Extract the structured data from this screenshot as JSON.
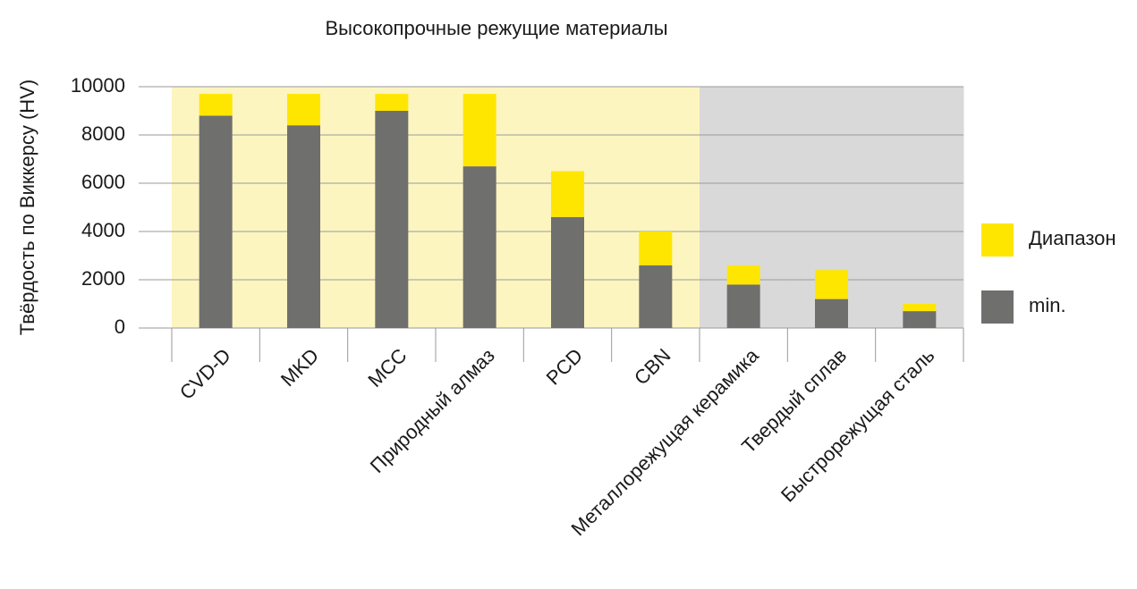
{
  "chart_data": {
    "type": "stacked_bar",
    "title": "Высокопрочные режущие материалы",
    "y_label": "Твёрдость по Виккерсу  (HV)",
    "categories": [
      "CVD-D",
      "MKD",
      "MCC",
      "Природный алмаз",
      "PCD",
      "CBN",
      "Металлорежущая керамика",
      "Твердый сплав",
      "Быстрорежущая сталь"
    ],
    "series": [
      {
        "name": "min.",
        "color": "#6f6f6e",
        "values": [
          8800,
          8400,
          9000,
          6700,
          4600,
          2600,
          1800,
          1200,
          700
        ]
      },
      {
        "name": "Диапазон",
        "color": "#ffe600",
        "values": [
          900,
          1300,
          700,
          3000,
          1900,
          1400,
          800,
          1200,
          300
        ]
      }
    ],
    "background_colors": [
      "#fcf5c0",
      "#fcf5c0",
      "#fcf5c0",
      "#fcf5c0",
      "#fcf5c0",
      "#fcf5c0",
      "#d9d9d9",
      "#d9d9d9",
      "#d9d9d9"
    ],
    "ylim": [
      0,
      10000
    ],
    "yticks": [
      0,
      2000,
      4000,
      6000,
      8000,
      10000
    ],
    "grid": true,
    "legend": "right"
  }
}
